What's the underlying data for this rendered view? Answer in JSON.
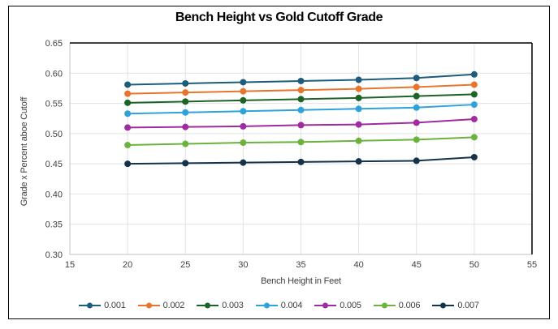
{
  "chart_data": {
    "type": "line",
    "title": "Bench Height vs Gold Cutoff Grade",
    "xlabel": "Bench Height in Feet",
    "ylabel": "Grade x Percent aboe Cutoff",
    "xlim": [
      15,
      55
    ],
    "ylim": [
      0.3,
      0.65
    ],
    "xticks": [
      15,
      20,
      25,
      30,
      35,
      40,
      45,
      50,
      55
    ],
    "yticks": [
      0.3,
      0.35,
      0.4,
      0.45,
      0.5,
      0.55,
      0.6,
      0.65
    ],
    "grid": true,
    "legend_position": "bottom",
    "x": [
      20,
      25,
      30,
      35,
      40,
      45,
      50
    ],
    "series": [
      {
        "name": "0.001",
        "color": "#1d5c7c",
        "values": [
          0.581,
          0.583,
          0.585,
          0.587,
          0.589,
          0.592,
          0.598
        ]
      },
      {
        "name": "0.002",
        "color": "#e8732a",
        "values": [
          0.566,
          0.568,
          0.57,
          0.572,
          0.574,
          0.577,
          0.581
        ]
      },
      {
        "name": "0.003",
        "color": "#1c6327",
        "values": [
          0.551,
          0.553,
          0.555,
          0.557,
          0.559,
          0.562,
          0.565
        ]
      },
      {
        "name": "0.004",
        "color": "#2ea3db",
        "values": [
          0.533,
          0.535,
          0.537,
          0.539,
          0.541,
          0.543,
          0.548
        ]
      },
      {
        "name": "0.005",
        "color": "#a02b9e",
        "values": [
          0.51,
          0.511,
          0.512,
          0.514,
          0.515,
          0.518,
          0.524
        ]
      },
      {
        "name": "0.006",
        "color": "#6ab33c",
        "values": [
          0.481,
          0.483,
          0.485,
          0.486,
          0.488,
          0.49,
          0.494
        ]
      },
      {
        "name": "0.007",
        "color": "#143349",
        "values": [
          0.45,
          0.451,
          0.452,
          0.453,
          0.454,
          0.455,
          0.461
        ]
      }
    ]
  },
  "style_colors": {
    "gridline": "#e2e2e2",
    "axis_line_gray": "#c0c0c0",
    "plot_border_black": "#000000",
    "text": "#3f3f3f"
  }
}
